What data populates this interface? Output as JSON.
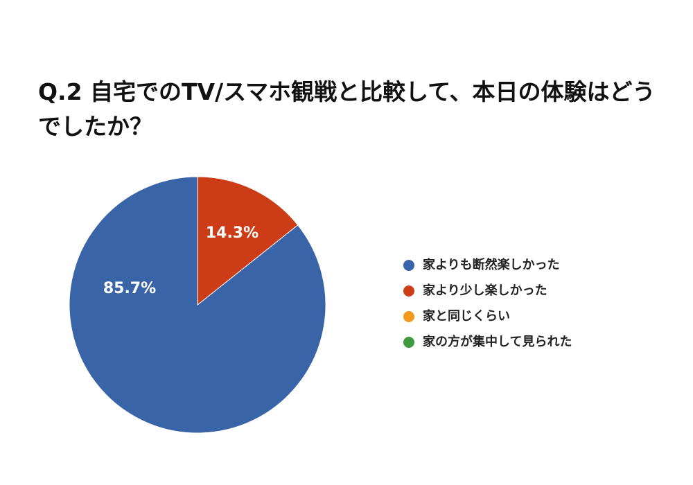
{
  "chart_data": {
    "type": "pie",
    "title": "Q.2 自宅でのTV/スマホ観戦と比較して、本日の体験はどうでしたか？",
    "categories": [
      "家よりも断然楽しかった",
      "家より少し楽しかった",
      "家と同じくらい",
      "家の方が集中して見られた"
    ],
    "values": [
      85.7,
      14.3,
      0,
      0
    ],
    "value_labels": [
      "85.7%",
      "14.3%",
      null,
      null
    ],
    "colors": [
      "#3a64a8",
      "#cc3d17",
      "#f39a1e",
      "#3f9a3e"
    ],
    "legend": "right"
  }
}
